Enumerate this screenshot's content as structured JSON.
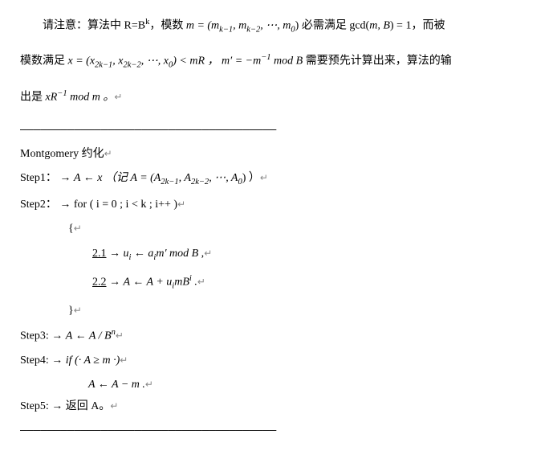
{
  "intro": {
    "line1_prefix": "请注意：算法中 R=B",
    "line1_sup": "k",
    "line1_mid": "，模数 ",
    "line1_m_eq": "m = (m",
    "line1_idx1": "k−1",
    "line1_comma1": ", m",
    "line1_idx2": "k−2",
    "line1_dots": ", ⋯, m",
    "line1_idx3": "0",
    "line1_close": ") 必需满足 gcd(",
    "line1_mB": "m, B",
    "line1_eq1": ") = 1，而被",
    "line2_prefix": "模数满足 ",
    "line2_x": "x = (x",
    "line2_xidx1": "2k−1",
    "line2_xcomma1": ", x",
    "line2_xidx2": "2k−2",
    "line2_xdots": ", ⋯, x",
    "line2_xidx3": "0",
    "line2_xclose": ") < mR ， ",
    "line2_mprime": "m′ = −m",
    "line2_mexp": "−1",
    "line2_modB": " mod B ",
    "line2_suffix": "需要预先计算出来，算法的输",
    "line3": "出是 ",
    "line3_xR": "xR",
    "line3_exp": "−1",
    "line3_mod": " mod m 。"
  },
  "sep": "——————————————————————————————————————",
  "title": "Montgomery 约化",
  "step1": {
    "label": "Step1：",
    "arrow": " → ",
    "body1": "A ← x  （记 A = (A",
    "idx1": "2k−1",
    "c1": ", A",
    "idx2": "2k−2",
    "dots": ", ⋯, A",
    "idx3": "0",
    "close": ") ）"
  },
  "step2": {
    "label": "Step2：",
    "arrow": " → ",
    "for": "for ( i = 0 ; i < k ; i++ )",
    "brace_open": "{",
    "s21_num": "2.1",
    "s21_arrow": " → ",
    "s21_body1": "u",
    "s21_sub": "i",
    "s21_body2": " ← a",
    "s21_sub2": "i",
    "s21_body3": "m′ mod B ,",
    "s22_num": "2.2",
    "s22_arrow": " → ",
    "s22_body1": "A ← A + u",
    "s22_sub": "i",
    "s22_body2": "mB",
    "s22_sup": "i",
    "s22_body3": " .",
    "brace_close": "}"
  },
  "step3": {
    "label": "Step3: ",
    "arrow": " → ",
    "body1": "A ← A / B",
    "sup": "n"
  },
  "step4": {
    "label": "Step4: ",
    "arrow": " → ",
    "if": "if (· A ≥ m ·)",
    "body": "A ← A − m ."
  },
  "step5": {
    "label": "Step5: ",
    "arrow": " → ",
    "body": "返回 A。"
  },
  "ret": "↵"
}
